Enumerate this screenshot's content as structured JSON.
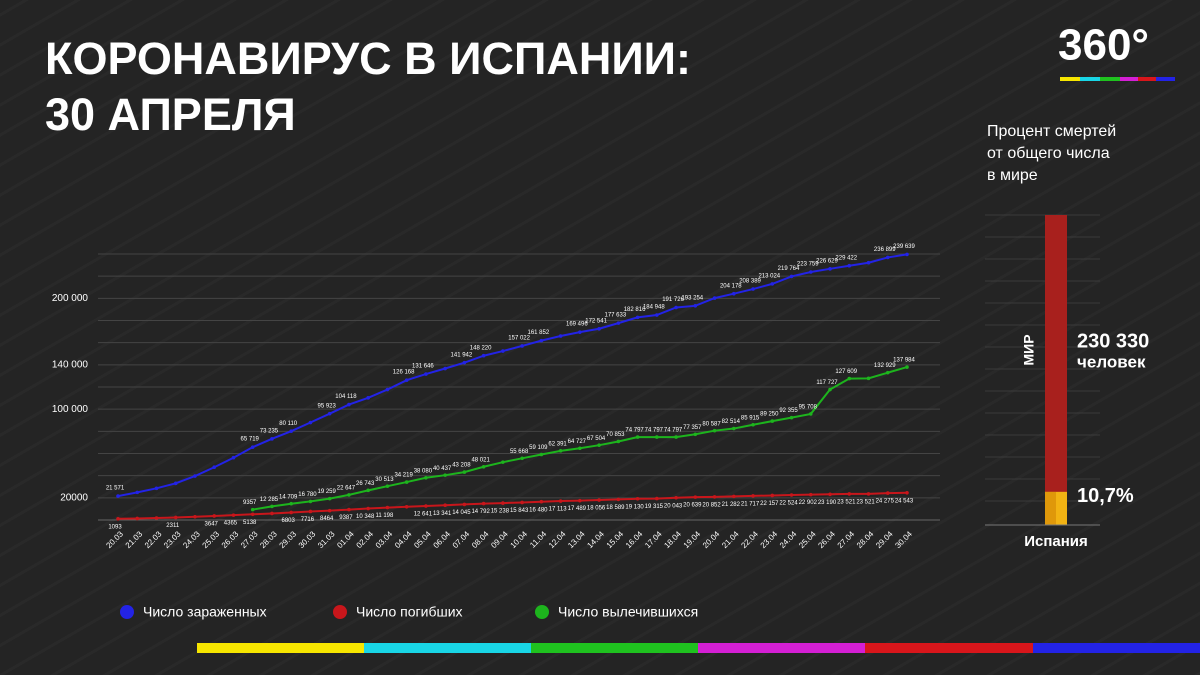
{
  "header": {
    "title_lines": [
      "КОРОНАВИРУС В ИСПАНИИ:",
      "30 АПРЕЛЯ"
    ],
    "logo": "360°"
  },
  "chart_data": [
    {
      "type": "line",
      "categories": [
        "20.03",
        "21.03",
        "22.03",
        "23.03",
        "24.03",
        "25.03",
        "26.03",
        "27.03",
        "28.03",
        "29.03",
        "30.03",
        "31.03",
        "01.04",
        "02.04",
        "03.04",
        "04.04",
        "05.04",
        "06.04",
        "07.04",
        "08.04",
        "09.04",
        "10.04",
        "11.04",
        "12.04",
        "13.04",
        "14.04",
        "15.04",
        "16.04",
        "17.04",
        "18.04",
        "19.04",
        "20.04",
        "21.04",
        "22.04",
        "23.04",
        "24.04",
        "25.04",
        "26.04",
        "27.04",
        "28.04",
        "29.04",
        "30.04"
      ],
      "series": [
        {
          "name": "Число зараженных",
          "color": "#2323e6",
          "values": [
            21571,
            24926,
            28572,
            33089,
            39673,
            47610,
            56188,
            65719,
            73235,
            80110,
            87956,
            95923,
            104118,
            110238,
            117710,
            126168,
            131646,
            136675,
            141942,
            148220,
            152446,
            157022,
            161852,
            166019,
            169496,
            172541,
            177633,
            182816,
            184948,
            191726,
            193254,
            200210,
            204178,
            208389,
            213024,
            219764,
            223759,
            226629,
            229422,
            232128,
            236899,
            239639
          ],
          "value_labels": [
            "21 571",
            null,
            null,
            null,
            null,
            null,
            null,
            "65 719",
            "73 235",
            "80 110",
            null,
            "95 923",
            "104 118",
            null,
            null,
            "126 168",
            "131 646",
            null,
            "141 942",
            "148 220",
            null,
            "157 022",
            "161 852",
            null,
            "169 496",
            "172 541",
            "177 633",
            "182 816",
            "184 948",
            "191 726",
            "193 254",
            null,
            "204 178",
            "208 389",
            "213 024",
            "219 764",
            "223 759",
            "226 629",
            "229 422",
            null,
            "236 899",
            "239 639"
          ]
        },
        {
          "name": "Число погибших",
          "color": "#c8161b",
          "values": [
            1093,
            1400,
            1800,
            2311,
            2900,
            3647,
            4365,
            5138,
            5900,
            6803,
            7716,
            8464,
            9387,
            10348,
            11198,
            11900,
            12641,
            13341,
            14045,
            14792,
            15238,
            15843,
            16480,
            17113,
            17489,
            18056,
            18589,
            19130,
            19315,
            20043,
            20639,
            20852,
            21282,
            21717,
            22157,
            22524,
            22902,
            23190,
            23521,
            23521,
            24275,
            24543
          ],
          "value_labels": [
            "1093",
            null,
            null,
            "2311",
            null,
            "3647",
            "4365",
            "5138",
            null,
            "6803",
            "7716",
            "8464",
            "9387",
            "10 348",
            "11 198",
            null,
            "12 641",
            "13 341",
            "14 045",
            "14 792",
            "15 238",
            "15 843",
            "16 480",
            "17 113",
            "17 489",
            "18 056",
            "18 589",
            "19 130",
            "19 315",
            "20 043",
            "20 639",
            "20 852",
            "21 282",
            "21 717",
            "22 157",
            "22 524",
            "22 902",
            "23 190",
            "23 521",
            "23 521",
            "24 275",
            "24 543"
          ]
        },
        {
          "name": "Число вылечившихся",
          "color": "#1db41d",
          "values": [
            null,
            null,
            null,
            null,
            null,
            null,
            null,
            9357,
            12285,
            14709,
            16780,
            19259,
            22647,
            26743,
            30513,
            34219,
            38080,
            40437,
            43208,
            48021,
            52165,
            55668,
            59109,
            62391,
            64727,
            67504,
            70853,
            74797,
            74797,
            74797,
            77357,
            80587,
            82514,
            85915,
            89250,
            92355,
            95708,
            117727,
            127609,
            127800,
            132929,
            137984
          ],
          "value_labels": [
            null,
            null,
            null,
            null,
            null,
            null,
            null,
            "9357",
            "12 285",
            "14 709",
            "16 780",
            "19 259",
            "22 647",
            "26 743",
            "30 513",
            "34 219",
            "38 080",
            "40 437",
            "43 208",
            "48 021",
            null,
            "55 668",
            "59 109",
            "62 391",
            "64 727",
            "67 504",
            "70 853",
            "74 797",
            "74 797",
            "74 797",
            "77 357",
            "80 587",
            "82 514",
            "85 915",
            "89 250",
            "92 355",
            "95 708",
            "117 727",
            "127 609",
            null,
            "132 929",
            "137 984"
          ]
        }
      ],
      "ylim": [
        0,
        240000
      ],
      "yticks": [
        20000,
        {
          "value": 100000,
          "label": "100 000"
        },
        {
          "value": 140000,
          "label": "140 000"
        },
        {
          "value": 200000,
          "label": "200 000"
        }
      ],
      "grid": true,
      "ygrid": [
        0,
        20000,
        40000,
        60000,
        80000,
        100000,
        120000,
        140000,
        160000,
        180000,
        200000,
        220000,
        240000
      ],
      "legend": "bottom"
    },
    {
      "type": "share",
      "title_lines": [
        "Процент смертей",
        "от общего числа",
        "в мире"
      ],
      "total_label": "МИР",
      "total": 230330,
      "total_value_label": "230 330",
      "unit": "человек",
      "total_color": "#a8201d",
      "categories": [
        "Испания"
      ],
      "values": [
        10.7
      ],
      "value_labels": [
        "10,7%"
      ],
      "color": "#f2b313",
      "ylim": [
        0,
        100
      ]
    }
  ]
}
